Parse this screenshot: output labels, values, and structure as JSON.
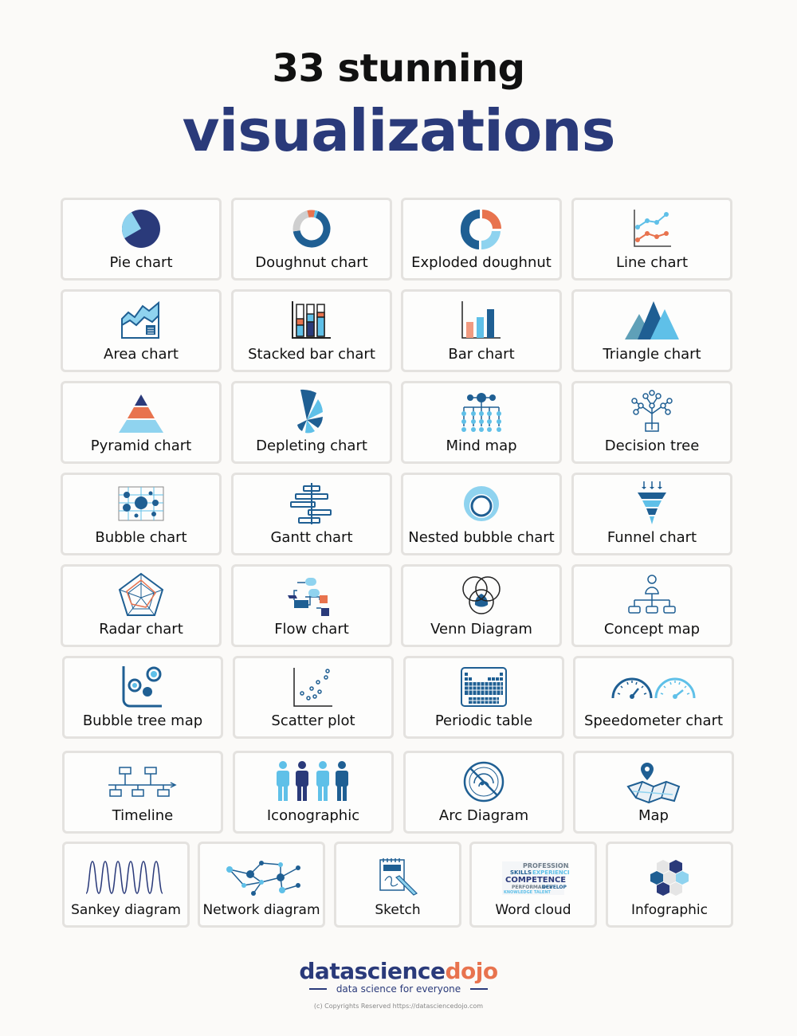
{
  "header": {
    "title_line1": "33 stunning",
    "title_line2": "visualizations"
  },
  "colors": {
    "navy": "#2a3a7a",
    "blue": "#1f5f93",
    "light_blue": "#5fc0e8",
    "coral": "#e8734e",
    "gray": "#cfcfcf"
  },
  "cards": [
    {
      "label": "Pie chart",
      "icon": "pie-chart-icon"
    },
    {
      "label": "Doughnut chart",
      "icon": "doughnut-chart-icon"
    },
    {
      "label": "Exploded doughnut",
      "icon": "exploded-doughnut-icon"
    },
    {
      "label": "Line chart",
      "icon": "line-chart-icon"
    },
    {
      "label": "Area chart",
      "icon": "area-chart-icon"
    },
    {
      "label": "Stacked bar chart",
      "icon": "stacked-bar-chart-icon"
    },
    {
      "label": "Bar chart",
      "icon": "bar-chart-icon"
    },
    {
      "label": "Triangle chart",
      "icon": "triangle-chart-icon"
    },
    {
      "label": "Pyramid chart",
      "icon": "pyramid-chart-icon"
    },
    {
      "label": "Depleting chart",
      "icon": "depleting-chart-icon"
    },
    {
      "label": "Mind map",
      "icon": "mind-map-icon"
    },
    {
      "label": "Decision tree",
      "icon": "decision-tree-icon"
    },
    {
      "label": "Bubble chart",
      "icon": "bubble-chart-icon"
    },
    {
      "label": "Gantt chart",
      "icon": "gantt-chart-icon"
    },
    {
      "label": "Nested bubble chart",
      "icon": "nested-bubble-chart-icon"
    },
    {
      "label": "Funnel chart",
      "icon": "funnel-chart-icon"
    },
    {
      "label": "Radar chart",
      "icon": "radar-chart-icon"
    },
    {
      "label": "Flow chart",
      "icon": "flow-chart-icon"
    },
    {
      "label": "Venn Diagram",
      "icon": "venn-diagram-icon"
    },
    {
      "label": "Concept map",
      "icon": "concept-map-icon"
    },
    {
      "label": "Bubble tree map",
      "icon": "bubble-tree-map-icon"
    },
    {
      "label": "Scatter plot",
      "icon": "scatter-plot-icon"
    },
    {
      "label": "Periodic table",
      "icon": "periodic-table-icon"
    },
    {
      "label": "Speedometer chart",
      "icon": "speedometer-chart-icon"
    },
    {
      "label": "Timeline",
      "icon": "timeline-icon"
    },
    {
      "label": "Iconographic",
      "icon": "iconographic-icon"
    },
    {
      "label": "Arc Diagram",
      "icon": "arc-diagram-icon"
    },
    {
      "label": "Map",
      "icon": "map-icon"
    },
    {
      "label": "Sankey diagram",
      "icon": "sankey-diagram-icon"
    },
    {
      "label": "Network diagram",
      "icon": "network-diagram-icon"
    },
    {
      "label": "Sketch",
      "icon": "sketch-icon"
    },
    {
      "label": "Word cloud",
      "icon": "word-cloud-icon"
    },
    {
      "label": "Infographic",
      "icon": "infographic-icon"
    }
  ],
  "footer": {
    "brand_part1": "datascience",
    "brand_part2": "dojo",
    "tagline": "data science for everyone",
    "copyright": "(c) Copyrights Reserved  https://datasciencedojo.com"
  }
}
